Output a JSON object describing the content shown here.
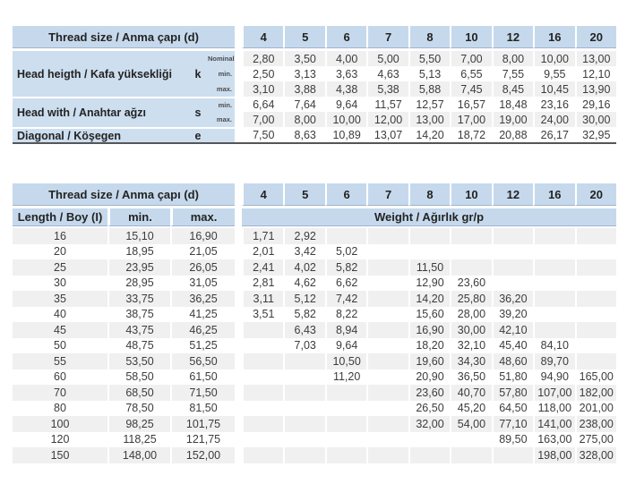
{
  "colors": {
    "header_blue": "#c6d9ec",
    "label_blue": "#cddeef",
    "stripe_gray": "#f1f0f1",
    "header_underline": "#9fb4cf",
    "dark_rule": "#565658",
    "text": "#3c3c3c"
  },
  "table1": {
    "header_label": "Thread size / Anma çapı (d)",
    "columns": [
      "4",
      "5",
      "6",
      "7",
      "8",
      "10",
      "12",
      "16",
      "20"
    ],
    "groups": [
      {
        "label": "Head heigth / Kafa yüksekliği",
        "symbol": "k",
        "rows": [
          {
            "sub": "Nominal",
            "values": [
              "2,80",
              "3,50",
              "4,00",
              "5,00",
              "5,50",
              "7,00",
              "8,00",
              "10,00",
              "13,00"
            ]
          },
          {
            "sub": "min.",
            "values": [
              "2,50",
              "3,13",
              "3,63",
              "4,63",
              "5,13",
              "6,55",
              "7,55",
              "9,55",
              "12,10"
            ]
          },
          {
            "sub": "max.",
            "values": [
              "3,10",
              "3,88",
              "4,38",
              "5,38",
              "5,88",
              "7,45",
              "8,45",
              "10,45",
              "13,90"
            ]
          }
        ]
      },
      {
        "label": "Head with / Anahtar ağzı",
        "symbol": "s",
        "rows": [
          {
            "sub": "min.",
            "values": [
              "6,64",
              "7,64",
              "9,64",
              "11,57",
              "12,57",
              "16,57",
              "18,48",
              "23,16",
              "29,16"
            ]
          },
          {
            "sub": "max.",
            "values": [
              "7,00",
              "8,00",
              "10,00",
              "12,00",
              "13,00",
              "17,00",
              "19,00",
              "24,00",
              "30,00"
            ]
          }
        ]
      },
      {
        "label": "Diagonal / Köşegen",
        "symbol": "e",
        "rows": [
          {
            "sub": "",
            "values": [
              "7,50",
              "8,63",
              "10,89",
              "13,07",
              "14,20",
              "18,72",
              "20,88",
              "26,17",
              "32,95"
            ]
          }
        ]
      }
    ]
  },
  "table2": {
    "header_label": "Thread size / Anma çapı (d)",
    "columns": [
      "4",
      "5",
      "6",
      "7",
      "8",
      "10",
      "12",
      "16",
      "20"
    ],
    "length_label": "Length / Boy (I)",
    "min_label": "min.",
    "max_label": "max.",
    "weight_label": "Weight / Ağırlık gr/p",
    "rows": [
      {
        "length": "16",
        "min": "15,10",
        "max": "16,90",
        "weights": [
          "1,71",
          "2,92",
          "",
          "",
          "",
          "",
          "",
          "",
          ""
        ]
      },
      {
        "length": "20",
        "min": "18,95",
        "max": "21,05",
        "weights": [
          "2,01",
          "3,42",
          "5,02",
          "",
          "",
          "",
          "",
          "",
          ""
        ]
      },
      {
        "length": "25",
        "min": "23,95",
        "max": "26,05",
        "weights": [
          "2,41",
          "4,02",
          "5,82",
          "",
          "11,50",
          "",
          "",
          "",
          ""
        ]
      },
      {
        "length": "30",
        "min": "28,95",
        "max": "31,05",
        "weights": [
          "2,81",
          "4,62",
          "6,62",
          "",
          "12,90",
          "23,60",
          "",
          "",
          ""
        ]
      },
      {
        "length": "35",
        "min": "33,75",
        "max": "36,25",
        "weights": [
          "3,11",
          "5,12",
          "7,42",
          "",
          "14,20",
          "25,80",
          "36,20",
          "",
          ""
        ]
      },
      {
        "length": "40",
        "min": "38,75",
        "max": "41,25",
        "weights": [
          "3,51",
          "5,82",
          "8,22",
          "",
          "15,60",
          "28,00",
          "39,20",
          "",
          ""
        ]
      },
      {
        "length": "45",
        "min": "43,75",
        "max": "46,25",
        "weights": [
          "",
          "6,43",
          "8,94",
          "",
          "16,90",
          "30,00",
          "42,10",
          "",
          ""
        ]
      },
      {
        "length": "50",
        "min": "48,75",
        "max": "51,25",
        "weights": [
          "",
          "7,03",
          "9,64",
          "",
          "18,20",
          "32,10",
          "45,40",
          "84,10",
          ""
        ]
      },
      {
        "length": "55",
        "min": "53,50",
        "max": "56,50",
        "weights": [
          "",
          "",
          "10,50",
          "",
          "19,60",
          "34,30",
          "48,60",
          "89,70",
          ""
        ]
      },
      {
        "length": "60",
        "min": "58,50",
        "max": "61,50",
        "weights": [
          "",
          "",
          "11,20",
          "",
          "20,90",
          "36,50",
          "51,80",
          "94,90",
          "165,00"
        ]
      },
      {
        "length": "70",
        "min": "68,50",
        "max": "71,50",
        "weights": [
          "",
          "",
          "",
          "",
          "23,60",
          "40,70",
          "57,80",
          "107,00",
          "182,00"
        ]
      },
      {
        "length": "80",
        "min": "78,50",
        "max": "81,50",
        "weights": [
          "",
          "",
          "",
          "",
          "26,50",
          "45,20",
          "64,50",
          "118,00",
          "201,00"
        ]
      },
      {
        "length": "100",
        "min": "98,25",
        "max": "101,75",
        "weights": [
          "",
          "",
          "",
          "",
          "32,00",
          "54,00",
          "77,10",
          "141,00",
          "238,00"
        ]
      },
      {
        "length": "120",
        "min": "118,25",
        "max": "121,75",
        "weights": [
          "",
          "",
          "",
          "",
          "",
          "",
          "89,50",
          "163,00",
          "275,00"
        ]
      },
      {
        "length": "150",
        "min": "148,00",
        "max": "152,00",
        "weights": [
          "",
          "",
          "",
          "",
          "",
          "",
          "",
          "198,00",
          "328,00"
        ]
      }
    ]
  }
}
